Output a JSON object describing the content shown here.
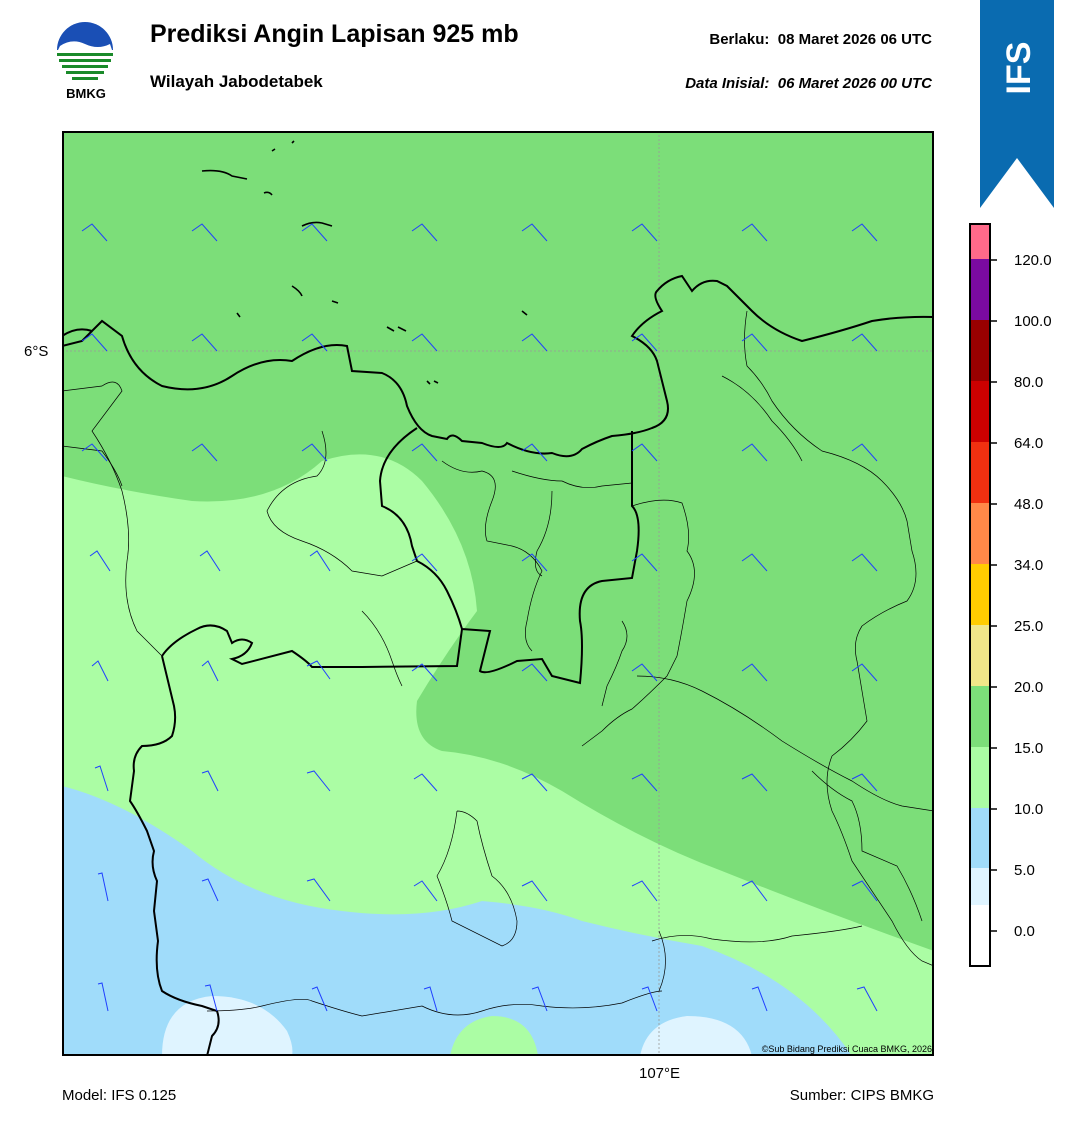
{
  "header": {
    "title": "Prediksi Angin Lapisan 925 mb",
    "region": "Wilayah Jabodetabek",
    "valid_label": "Berlaku:",
    "valid_value": "08 Maret 2026 06 UTC",
    "init_label": "Data Inisial:",
    "init_value": "06 Maret 2026 00 UTC"
  },
  "logo": {
    "text": "BMKG",
    "icon": "bmkg-logo-icon"
  },
  "ribbon": {
    "text": "IFS",
    "color": "#0a6bb0"
  },
  "map": {
    "lat_label": "6°S",
    "lon_label": "107°E",
    "copyright": "©Sub Bidang Prediksi Cuaca BMKG, 2026",
    "wind_barb_color": "#1f3fff",
    "boundary_color": "#000000"
  },
  "colorbar": {
    "levels": [
      "0.0",
      "5.0",
      "10.0",
      "15.0",
      "20.0",
      "25.0",
      "34.0",
      "48.0",
      "64.0",
      "80.0",
      "100.0",
      "120.0"
    ],
    "colors": [
      "#ffffff",
      "#dff4ff",
      "#a0dcfa",
      "#abfda4",
      "#7cde79",
      "#f0e688",
      "#ffcc00",
      "#ff8848",
      "#f03010",
      "#cc0000",
      "#990000",
      "#7a0aa0",
      "#ff6a8a"
    ]
  },
  "footer": {
    "model": "Model: IFS 0.125",
    "source": "Sumber: CIPS BMKG"
  }
}
